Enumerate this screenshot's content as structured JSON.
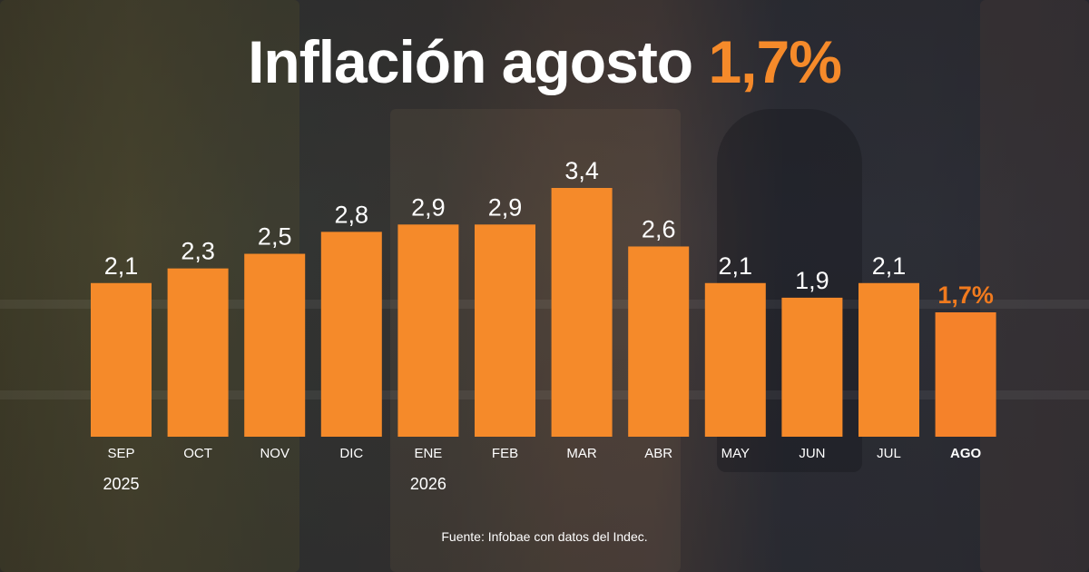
{
  "title": {
    "main": "Inflación agosto",
    "highlight": "1,7%"
  },
  "colors": {
    "bar": "#f58a2a",
    "bar_highlight": "#f5822a",
    "label": "#ffffff",
    "label_highlight": "#f07a1e",
    "title": "#ffffff",
    "title_accent": "#f58a2a"
  },
  "chart_data": {
    "type": "bar",
    "categories": [
      "SEP",
      "OCT",
      "NOV",
      "DIC",
      "ENE",
      "FEB",
      "MAR",
      "ABR",
      "MAY",
      "JUN",
      "JUL",
      "AGO"
    ],
    "values": [
      2.1,
      2.3,
      2.5,
      2.8,
      2.9,
      2.9,
      3.4,
      2.6,
      2.1,
      1.9,
      2.1,
      1.7
    ],
    "value_labels": [
      "2,1",
      "2,3",
      "2,5",
      "2,8",
      "2,9",
      "2,9",
      "3,4",
      "2,6",
      "2,1",
      "1,9",
      "2,1",
      "1,7%"
    ],
    "year_labels": [
      {
        "category": "SEP",
        "text": "2025"
      },
      {
        "category": "ENE",
        "text": "2026"
      }
    ],
    "highlight_category": "AGO",
    "ylim": [
      0,
      3.4
    ],
    "grid": false,
    "legend": "none",
    "title": "Inflación agosto 1,7%",
    "xlabel": "",
    "ylabel": ""
  },
  "source": "Fuente: Infobae con datos del Indec."
}
